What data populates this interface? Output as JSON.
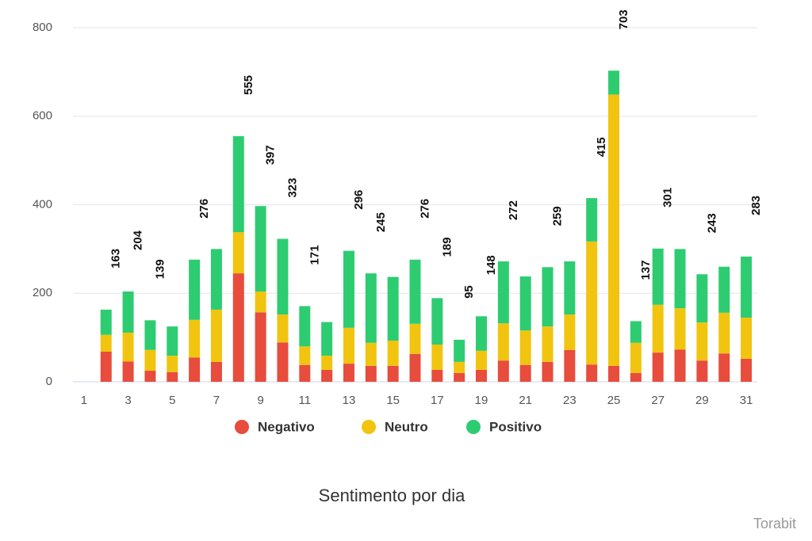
{
  "chart_data": {
    "type": "stacked_bar",
    "title": "Sentimento por dia",
    "credit": "Torabit",
    "categories": [
      1,
      null,
      3,
      null,
      5,
      null,
      7,
      null,
      9,
      null,
      11,
      null,
      13,
      null,
      15,
      null,
      17,
      null,
      19,
      null,
      21,
      null,
      23,
      null,
      25,
      null,
      27,
      null,
      29,
      null,
      31
    ],
    "series": [
      {
        "name": "Negativo",
        "color": "#e74c3c",
        "values": [
          null,
          68,
          46,
          25,
          22,
          55,
          45,
          245,
          157,
          89,
          38,
          27,
          41,
          36,
          36,
          63,
          27,
          20,
          27,
          48,
          38,
          45,
          72,
          39,
          36,
          20,
          66,
          73,
          48,
          64,
          52
        ]
      },
      {
        "name": "Neutro",
        "color": "#f1c40f",
        "values": [
          null,
          38,
          65,
          47,
          37,
          85,
          118,
          93,
          47,
          63,
          42,
          32,
          81,
          52,
          57,
          68,
          57,
          25,
          43,
          84,
          78,
          80,
          80,
          278,
          613,
          68,
          108,
          93,
          86,
          92,
          93
        ]
      },
      {
        "name": "Positivo",
        "color": "#2ecc71",
        "values": [
          null,
          57,
          93,
          67,
          66,
          136,
          137,
          217,
          193,
          171,
          91,
          76,
          174,
          157,
          144,
          145,
          105,
          50,
          78,
          140,
          122,
          134,
          120,
          98,
          54,
          49,
          127,
          134,
          109,
          104,
          138
        ]
      }
    ],
    "total_labels": [
      null,
      163,
      204,
      139,
      null,
      276,
      null,
      555,
      397,
      323,
      171,
      null,
      296,
      245,
      null,
      276,
      189,
      95,
      148,
      272,
      null,
      259,
      null,
      415,
      703,
      137,
      301,
      null,
      243,
      null,
      283
    ],
    "ylim": [
      0,
      800
    ],
    "yticks": [
      0,
      200,
      400,
      600,
      800
    ],
    "grid": true,
    "legend": "bottom"
  }
}
